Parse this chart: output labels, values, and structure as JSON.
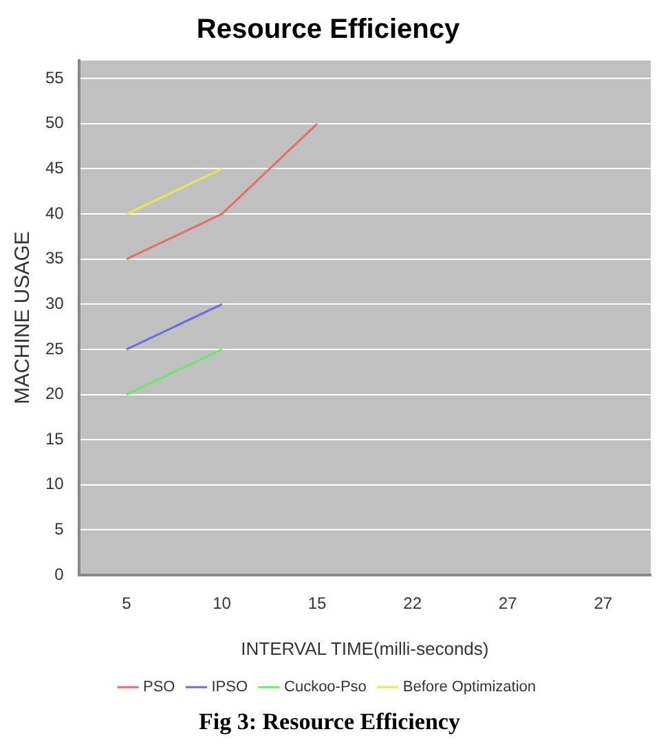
{
  "chart_data": {
    "type": "line",
    "title": "Resource Efficiency",
    "xlabel": "INTERVAL TIME(milli-seconds)",
    "ylabel": "MACHINE USAGE",
    "categories": [
      "5",
      "10",
      "15",
      "22",
      "27",
      "27"
    ],
    "series": [
      {
        "name": "PSO",
        "color": "#e86a6a",
        "values": [
          35,
          40,
          50,
          null,
          null,
          null
        ]
      },
      {
        "name": "IPSO",
        "color": "#6a6ae8",
        "values": [
          25,
          30,
          null,
          null,
          null,
          null
        ]
      },
      {
        "name": "Cuckoo-Pso",
        "color": "#6ae86a",
        "values": [
          20,
          25,
          null,
          null,
          null,
          null
        ]
      },
      {
        "name": "Before Optimization",
        "color": "#e8e84a",
        "values": [
          40,
          45,
          null,
          null,
          null,
          null
        ]
      }
    ],
    "ylim": [
      0,
      57
    ],
    "yticks": [
      0,
      5,
      10,
      15,
      20,
      25,
      30,
      35,
      40,
      45,
      50,
      55
    ],
    "grid": "y",
    "legend": "bottom",
    "marker": "none",
    "line_style": "solid",
    "annotations": [
      "Fig 3: Resource Efficiency"
    ]
  }
}
